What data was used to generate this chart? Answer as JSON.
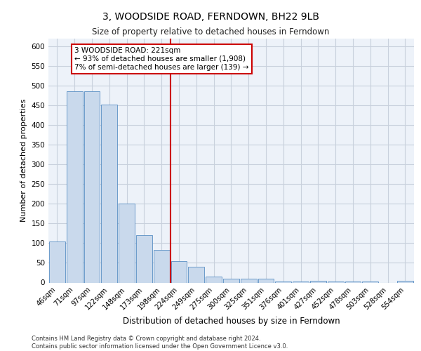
{
  "title1": "3, WOODSIDE ROAD, FERNDOWN, BH22 9LB",
  "title2": "Size of property relative to detached houses in Ferndown",
  "xlabel": "Distribution of detached houses by size in Ferndown",
  "ylabel": "Number of detached properties",
  "categories": [
    "46sqm",
    "71sqm",
    "97sqm",
    "122sqm",
    "148sqm",
    "173sqm",
    "198sqm",
    "224sqm",
    "249sqm",
    "275sqm",
    "300sqm",
    "325sqm",
    "351sqm",
    "376sqm",
    "401sqm",
    "427sqm",
    "452sqm",
    "478sqm",
    "503sqm",
    "528sqm",
    "554sqm"
  ],
  "values": [
    104,
    487,
    487,
    453,
    200,
    120,
    83,
    55,
    40,
    15,
    10,
    10,
    10,
    2,
    2,
    5,
    2,
    2,
    2,
    0,
    5
  ],
  "bar_color": "#c9d9ec",
  "bar_edge_color": "#5a8fc4",
  "marker_index": 7,
  "marker_color": "#cc0000",
  "annotation_text": "3 WOODSIDE ROAD: 221sqm\n← 93% of detached houses are smaller (1,908)\n7% of semi-detached houses are larger (139) →",
  "annotation_box_color": "#ffffff",
  "annotation_box_edge": "#cc0000",
  "footer_text": "Contains HM Land Registry data © Crown copyright and database right 2024.\nContains public sector information licensed under the Open Government Licence v3.0.",
  "ylim_max": 620,
  "yticks": [
    0,
    50,
    100,
    150,
    200,
    250,
    300,
    350,
    400,
    450,
    500,
    550,
    600
  ],
  "grid_color": "#c8d0dc",
  "background_color": "#edf2f9"
}
